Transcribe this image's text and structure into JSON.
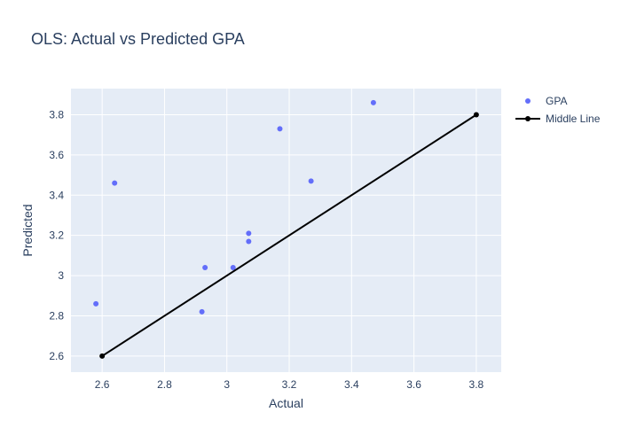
{
  "chart_data": {
    "type": "scatter",
    "title": "OLS: Actual vs Predicted GPA",
    "xlabel": "Actual",
    "ylabel": "Predicted",
    "xlim": [
      2.5,
      3.88
    ],
    "ylim": [
      2.52,
      3.93
    ],
    "xticks": [
      2.6,
      2.8,
      3,
      3.2,
      3.4,
      3.6,
      3.8
    ],
    "xtick_labels": [
      "2.6",
      "2.8",
      "3",
      "3.2",
      "3.4",
      "3.6",
      "3.8"
    ],
    "yticks": [
      2.6,
      2.8,
      3,
      3.2,
      3.4,
      3.6,
      3.8
    ],
    "ytick_labels": [
      "2.6",
      "2.8",
      "3",
      "3.2",
      "3.4",
      "3.6",
      "3.8"
    ],
    "grid": true,
    "legend_position": "top-right",
    "series": [
      {
        "name": "GPA",
        "mode": "markers",
        "color": "#636efa",
        "x": [
          2.58,
          2.64,
          2.92,
          2.93,
          3.02,
          3.07,
          3.07,
          3.17,
          3.27,
          3.47
        ],
        "y": [
          2.86,
          3.46,
          2.82,
          3.04,
          3.04,
          3.21,
          3.17,
          3.73,
          3.47,
          3.86
        ]
      },
      {
        "name": "Middle Line",
        "mode": "lines+markers",
        "color": "#000000",
        "x": [
          2.6,
          3.8
        ],
        "y": [
          2.6,
          3.8
        ]
      }
    ],
    "colors": {
      "plot_bg": "#e5ecf6",
      "grid": "#ffffff",
      "text": "#2a3f5f"
    }
  }
}
